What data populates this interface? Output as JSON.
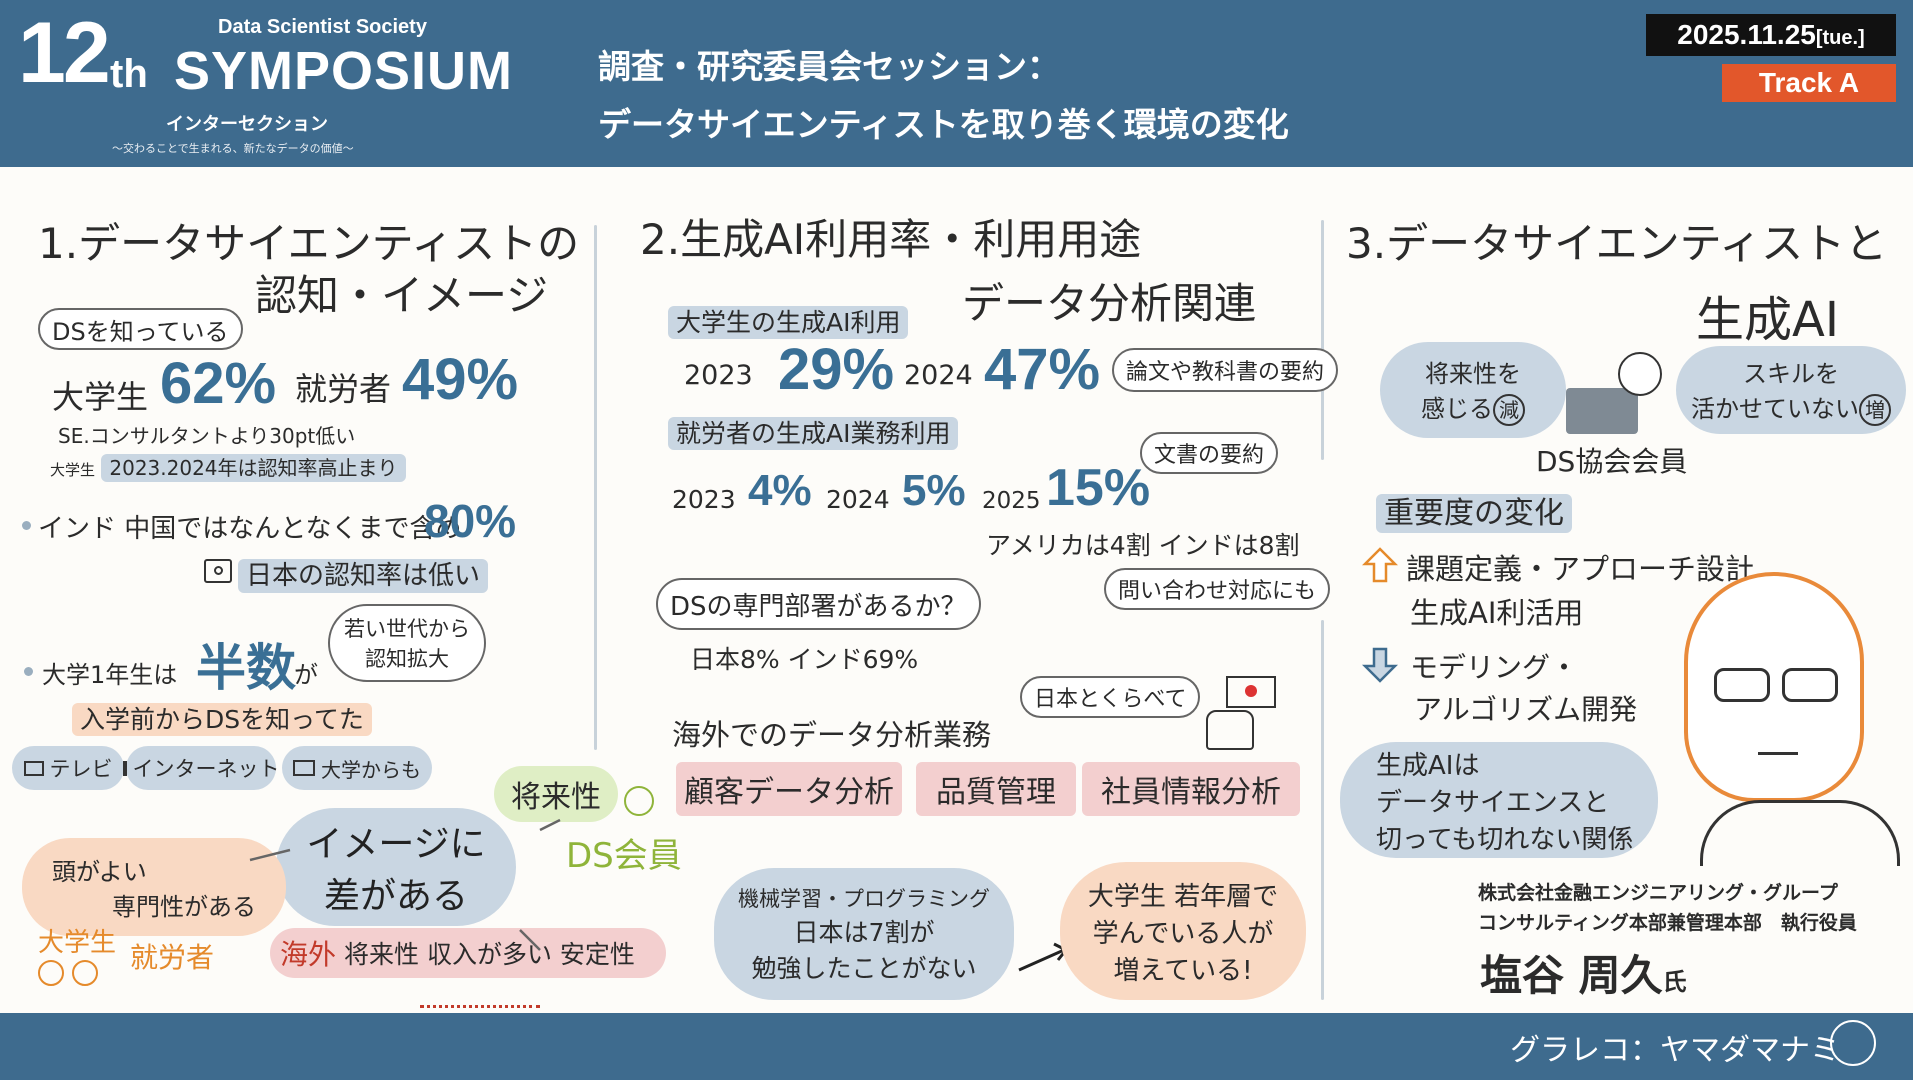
{
  "header": {
    "number": "12",
    "suffix": "th",
    "society": "Data Scientist Society",
    "symposium": "SYMPOSIUM",
    "theme": "インターセクション",
    "tagline": "〜交わることで生まれる、新たなデータの価値〜",
    "title_line1": "調査・研究委員会セッション：",
    "title_line2": "データサイエンティストを取り巻く環境の変化",
    "date": "2025.11.25",
    "weekday": "[tue.]",
    "track": "Track A"
  },
  "colors": {
    "header_bg": "#3e6b8e",
    "track_bg": "#e2572b",
    "accent_blue": "#3a6f95"
  },
  "sec1": {
    "title1": "1.データサイエンティストの",
    "title2": "認知・イメージ",
    "ds_know": "DSを知っている",
    "students": "大学生",
    "students_pct": "62%",
    "workers": "就労者",
    "workers_pct": "49%",
    "note1": "SE.コンサルタントより30pt低い",
    "note2_prefix": "大学生",
    "note2": "2023.2024年は認知率高止まり",
    "india_china": "インド 中国ではなんとなくまで含め",
    "india_pct": "80%",
    "japan_low": "日本の認知率は低い",
    "first_year": "大学1年生は",
    "half": "半数",
    "ga": "が",
    "young_bubble1": "若い世代から",
    "young_bubble2": "認知拡大",
    "before_entry": "入学前からDSを知ってた",
    "src_tv": "テレビ",
    "src_net": "インターネット",
    "src_univ": "大学からも",
    "image_gap1": "イメージに",
    "image_gap2": "差がある",
    "smart": "頭がよい",
    "expert": "専門性がある",
    "univ_student": "大学生",
    "worker": "就労者",
    "future": "将来性",
    "ds_member": "DS会員",
    "overseas": "海外",
    "overseas_items": "将来性 収入が多い 安定性"
  },
  "sec2": {
    "title1": "2.生成AI利用率・利用用途",
    "title2": "データ分析関連",
    "students_ai": "大学生の生成AI利用",
    "y2023": "2023",
    "s2023": "29%",
    "y2024": "2024",
    "s2024": "47%",
    "paper_summary": "論文や教科書の要約",
    "workers_ai": "就労者の生成AI業務利用",
    "w2023": "4%",
    "w2024": "5%",
    "y2025": "2025",
    "w2025": "15%",
    "doc_summary": "文書の要約",
    "us_india": "アメリカは4割 インドは8割",
    "inquiry": "問い合わせ対応にも",
    "ds_dept": "DSの専門部署があるか？",
    "japan_india": "日本8% インド69%",
    "compare_japan": "日本とくらべて",
    "overseas_analysis": "海外でのデータ分析業務",
    "task1": "顧客データ分析",
    "task2": "品質管理",
    "task3": "社員情報分析",
    "ml_line1": "機械学習・プログラミング",
    "ml_line2": "日本は7割が",
    "ml_line3": "勉強したことがない",
    "young_line1": "大学生 若年層で",
    "young_line2": "学んでいる人が",
    "young_line3": "増えている!"
  },
  "sec3": {
    "title1": "3.データサイエンティストと",
    "title2": "生成AI",
    "future_feel1": "将来性を",
    "future_feel2": "感じる",
    "decrease": "減",
    "skill1": "スキルを",
    "skill2": "活かせていない",
    "increase": "増",
    "members": "DS協会会員",
    "importance": "重要度の変化",
    "up1": "課題定義・アプローチ設計",
    "up2": "生成AI利活用",
    "down1": "モデリング・",
    "down2": "アルゴリズム開発",
    "link1": "生成AIは",
    "link2": "データサイエンスと",
    "link3": "切っても切れない関係",
    "company1": "株式会社金融エンジニアリング・グループ",
    "company2": "コンサルティング本部兼管理本部　執行役員",
    "speaker": "塩谷 周久",
    "honorific": "氏"
  },
  "footer": {
    "credit": "グラレコ：ヤマダマナミ"
  }
}
